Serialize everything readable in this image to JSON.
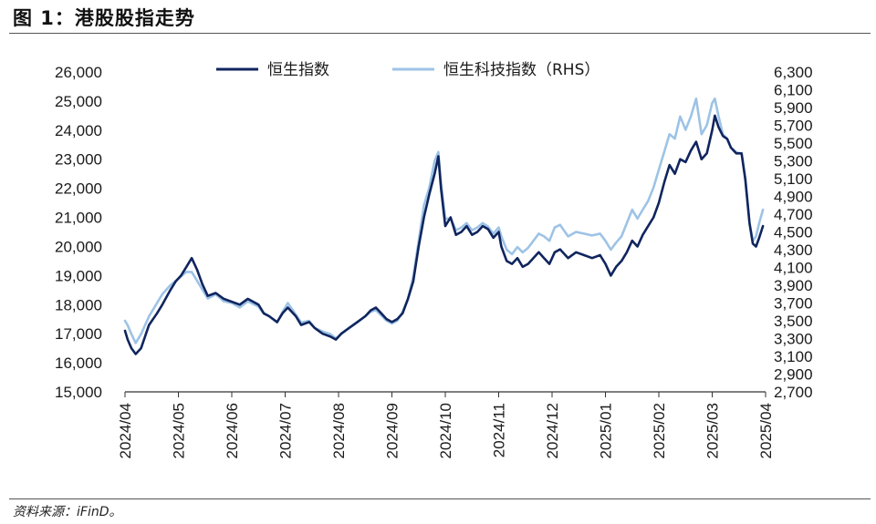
{
  "figure": {
    "title": "图 1：港股股指走势",
    "source": "资料来源：iFinD。"
  },
  "colors": {
    "hsi": "#10255e",
    "hstech": "#9dc3e6",
    "axis": "#333333"
  },
  "chart_data": {
    "type": "line",
    "title": "港股股指走势",
    "legend_position": "top-center",
    "x_ticks": [
      "2024/04",
      "2024/05",
      "2024/06",
      "2024/07",
      "2024/08",
      "2024/09",
      "2024/10",
      "2024/11",
      "2024/12",
      "2025/01",
      "2025/02",
      "2025/03",
      "2025/04"
    ],
    "x_range": [
      0,
      12
    ],
    "y_left": {
      "range": [
        15000,
        26000
      ],
      "ticks": [
        15000,
        16000,
        17000,
        18000,
        19000,
        20000,
        21000,
        22000,
        23000,
        24000,
        25000,
        26000
      ],
      "tick_labels": [
        "15,000",
        "16,000",
        "17,000",
        "18,000",
        "19,000",
        "20,000",
        "21,000",
        "22,000",
        "23,000",
        "24,000",
        "25,000",
        "26,000"
      ]
    },
    "y_right": {
      "range": [
        2700,
        6300
      ],
      "ticks": [
        2700,
        2900,
        3100,
        3300,
        3500,
        3700,
        3900,
        4100,
        4300,
        4500,
        4700,
        4900,
        5100,
        5300,
        5500,
        5700,
        5900,
        6100,
        6300
      ],
      "tick_labels": [
        "2,700",
        "2,900",
        "3,100",
        "3,300",
        "3,500",
        "3,700",
        "3,900",
        "4,100",
        "4,300",
        "4,500",
        "4,700",
        "4,900",
        "5,100",
        "5,300",
        "5,500",
        "5,700",
        "5,900",
        "6,100",
        "6,300"
      ]
    },
    "series": [
      {
        "name": "恒生指数",
        "axis": "left",
        "points": [
          [
            0,
            17100
          ],
          [
            0.05,
            16800
          ],
          [
            0.12,
            16500
          ],
          [
            0.2,
            16300
          ],
          [
            0.3,
            16500
          ],
          [
            0.45,
            17300
          ],
          [
            0.6,
            17700
          ],
          [
            0.7,
            18000
          ],
          [
            0.85,
            18500
          ],
          [
            0.95,
            18800
          ],
          [
            1.05,
            19000
          ],
          [
            1.15,
            19300
          ],
          [
            1.25,
            19600
          ],
          [
            1.35,
            19200
          ],
          [
            1.45,
            18700
          ],
          [
            1.55,
            18300
          ],
          [
            1.7,
            18400
          ],
          [
            1.85,
            18200
          ],
          [
            2,
            18100
          ],
          [
            2.15,
            18000
          ],
          [
            2.3,
            18200
          ],
          [
            2.5,
            18000
          ],
          [
            2.6,
            17700
          ],
          [
            2.7,
            17600
          ],
          [
            2.85,
            17400
          ],
          [
            2.95,
            17700
          ],
          [
            3.05,
            17900
          ],
          [
            3.2,
            17600
          ],
          [
            3.3,
            17300
          ],
          [
            3.45,
            17400
          ],
          [
            3.55,
            17200
          ],
          [
            3.7,
            17000
          ],
          [
            3.85,
            16900
          ],
          [
            3.95,
            16800
          ],
          [
            4.05,
            17000
          ],
          [
            4.2,
            17200
          ],
          [
            4.35,
            17400
          ],
          [
            4.5,
            17600
          ],
          [
            4.6,
            17800
          ],
          [
            4.7,
            17900
          ],
          [
            4.8,
            17700
          ],
          [
            4.9,
            17500
          ],
          [
            5,
            17400
          ],
          [
            5.1,
            17500
          ],
          [
            5.2,
            17700
          ],
          [
            5.3,
            18200
          ],
          [
            5.4,
            18800
          ],
          [
            5.5,
            20000
          ],
          [
            5.6,
            21000
          ],
          [
            5.7,
            21800
          ],
          [
            5.8,
            22500
          ],
          [
            5.87,
            23100
          ],
          [
            5.92,
            22000
          ],
          [
            6,
            20700
          ],
          [
            6.1,
            21000
          ],
          [
            6.2,
            20400
          ],
          [
            6.3,
            20500
          ],
          [
            6.4,
            20700
          ],
          [
            6.5,
            20400
          ],
          [
            6.6,
            20500
          ],
          [
            6.7,
            20700
          ],
          [
            6.8,
            20600
          ],
          [
            6.9,
            20300
          ],
          [
            7,
            20500
          ],
          [
            7.05,
            20000
          ],
          [
            7.15,
            19500
          ],
          [
            7.25,
            19400
          ],
          [
            7.35,
            19600
          ],
          [
            7.45,
            19300
          ],
          [
            7.55,
            19400
          ],
          [
            7.65,
            19600
          ],
          [
            7.75,
            19800
          ],
          [
            7.85,
            19600
          ],
          [
            7.95,
            19400
          ],
          [
            8.05,
            19800
          ],
          [
            8.15,
            19900
          ],
          [
            8.3,
            19600
          ],
          [
            8.45,
            19800
          ],
          [
            8.6,
            19700
          ],
          [
            8.75,
            19600
          ],
          [
            8.9,
            19700
          ],
          [
            9,
            19400
          ],
          [
            9.1,
            19000
          ],
          [
            9.2,
            19300
          ],
          [
            9.3,
            19500
          ],
          [
            9.4,
            19800
          ],
          [
            9.5,
            20200
          ],
          [
            9.6,
            20000
          ],
          [
            9.7,
            20400
          ],
          [
            9.8,
            20700
          ],
          [
            9.9,
            21000
          ],
          [
            10,
            21500
          ],
          [
            10.1,
            22200
          ],
          [
            10.2,
            22800
          ],
          [
            10.3,
            22500
          ],
          [
            10.4,
            23000
          ],
          [
            10.5,
            22900
          ],
          [
            10.6,
            23300
          ],
          [
            10.7,
            23600
          ],
          [
            10.8,
            23000
          ],
          [
            10.9,
            23200
          ],
          [
            11,
            24000
          ],
          [
            11.05,
            24500
          ],
          [
            11.12,
            24100
          ],
          [
            11.2,
            23800
          ],
          [
            11.28,
            23700
          ],
          [
            11.35,
            23400
          ],
          [
            11.45,
            23200
          ],
          [
            11.55,
            23200
          ],
          [
            11.62,
            22300
          ],
          [
            11.7,
            20800
          ],
          [
            11.76,
            20100
          ],
          [
            11.82,
            20000
          ],
          [
            11.88,
            20300
          ],
          [
            11.95,
            20700
          ]
        ]
      },
      {
        "name": "恒生科技指数（RHS）",
        "axis": "right",
        "points": [
          [
            0,
            3500
          ],
          [
            0.05,
            3450
          ],
          [
            0.12,
            3350
          ],
          [
            0.2,
            3250
          ],
          [
            0.3,
            3350
          ],
          [
            0.45,
            3550
          ],
          [
            0.6,
            3700
          ],
          [
            0.7,
            3800
          ],
          [
            0.85,
            3900
          ],
          [
            0.95,
            3950
          ],
          [
            1.05,
            4000
          ],
          [
            1.15,
            4050
          ],
          [
            1.25,
            4050
          ],
          [
            1.35,
            3950
          ],
          [
            1.45,
            3850
          ],
          [
            1.55,
            3750
          ],
          [
            1.7,
            3800
          ],
          [
            1.85,
            3720
          ],
          [
            2,
            3700
          ],
          [
            2.15,
            3650
          ],
          [
            2.3,
            3720
          ],
          [
            2.5,
            3660
          ],
          [
            2.6,
            3580
          ],
          [
            2.7,
            3550
          ],
          [
            2.85,
            3480
          ],
          [
            2.95,
            3600
          ],
          [
            3.05,
            3700
          ],
          [
            3.2,
            3570
          ],
          [
            3.3,
            3480
          ],
          [
            3.45,
            3500
          ],
          [
            3.55,
            3420
          ],
          [
            3.7,
            3380
          ],
          [
            3.85,
            3350
          ],
          [
            3.95,
            3300
          ],
          [
            4.05,
            3350
          ],
          [
            4.2,
            3420
          ],
          [
            4.35,
            3480
          ],
          [
            4.5,
            3550
          ],
          [
            4.6,
            3600
          ],
          [
            4.7,
            3620
          ],
          [
            4.8,
            3560
          ],
          [
            4.9,
            3500
          ],
          [
            5,
            3470
          ],
          [
            5.1,
            3500
          ],
          [
            5.2,
            3600
          ],
          [
            5.3,
            3750
          ],
          [
            5.4,
            4000
          ],
          [
            5.5,
            4400
          ],
          [
            5.6,
            4800
          ],
          [
            5.7,
            5000
          ],
          [
            5.8,
            5300
          ],
          [
            5.87,
            5400
          ],
          [
            5.92,
            5050
          ],
          [
            6,
            4650
          ],
          [
            6.1,
            4650
          ],
          [
            6.2,
            4520
          ],
          [
            6.3,
            4550
          ],
          [
            6.4,
            4600
          ],
          [
            6.5,
            4520
          ],
          [
            6.6,
            4550
          ],
          [
            6.7,
            4600
          ],
          [
            6.8,
            4560
          ],
          [
            6.9,
            4480
          ],
          [
            7,
            4550
          ],
          [
            7.05,
            4450
          ],
          [
            7.15,
            4300
          ],
          [
            7.25,
            4250
          ],
          [
            7.35,
            4330
          ],
          [
            7.45,
            4270
          ],
          [
            7.55,
            4320
          ],
          [
            7.65,
            4400
          ],
          [
            7.75,
            4480
          ],
          [
            7.85,
            4450
          ],
          [
            7.95,
            4400
          ],
          [
            8.05,
            4550
          ],
          [
            8.15,
            4580
          ],
          [
            8.3,
            4450
          ],
          [
            8.45,
            4500
          ],
          [
            8.6,
            4480
          ],
          [
            8.75,
            4460
          ],
          [
            8.9,
            4480
          ],
          [
            9,
            4400
          ],
          [
            9.1,
            4300
          ],
          [
            9.2,
            4380
          ],
          [
            9.3,
            4450
          ],
          [
            9.4,
            4600
          ],
          [
            9.5,
            4750
          ],
          [
            9.6,
            4650
          ],
          [
            9.7,
            4750
          ],
          [
            9.8,
            4850
          ],
          [
            9.9,
            5000
          ],
          [
            10,
            5200
          ],
          [
            10.1,
            5400
          ],
          [
            10.2,
            5600
          ],
          [
            10.3,
            5550
          ],
          [
            10.4,
            5800
          ],
          [
            10.5,
            5650
          ],
          [
            10.6,
            5800
          ],
          [
            10.7,
            6000
          ],
          [
            10.8,
            5600
          ],
          [
            10.9,
            5700
          ],
          [
            11,
            5950
          ],
          [
            11.05,
            6000
          ],
          [
            11.12,
            5800
          ],
          [
            11.2,
            5600
          ],
          [
            11.28,
            5550
          ],
          [
            11.35,
            5450
          ],
          [
            11.45,
            5400
          ],
          [
            11.55,
            5380
          ],
          [
            11.62,
            5100
          ],
          [
            11.7,
            4600
          ],
          [
            11.76,
            4400
          ],
          [
            11.82,
            4450
          ],
          [
            11.88,
            4600
          ],
          [
            11.95,
            4750
          ]
        ]
      }
    ]
  }
}
